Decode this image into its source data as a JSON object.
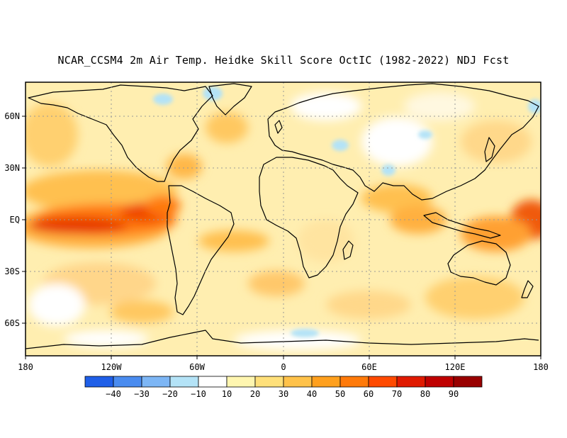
{
  "title": "NCAR_CCSM4 2m Air Temp. Heidke Skill Score OctIC (1982-2022) NDJ Fcst",
  "map": {
    "lat_labels": [
      "60N",
      "30N",
      "EQ",
      "30S",
      "60S"
    ],
    "lat_values": [
      60,
      30,
      0,
      -30,
      -60
    ],
    "lon_labels": [
      "180",
      "120W",
      "60W",
      "0",
      "60E",
      "120E",
      "180"
    ],
    "lon_values": [
      -180,
      -120,
      -60,
      0,
      60,
      120,
      180
    ],
    "lat_range": [
      -80,
      80
    ],
    "lon_range": [
      -180,
      180
    ],
    "grid": "dotted"
  },
  "colorbar": {
    "levels": [
      "-40",
      "-30",
      "-20",
      "-10",
      "10",
      "20",
      "30",
      "40",
      "50",
      "60",
      "70",
      "80",
      "90"
    ],
    "colors": [
      "#1f5fe8",
      "#4a8cf0",
      "#7db6f5",
      "#b4e3f7",
      "#ffffff",
      "#fff6b0",
      "#ffe07a",
      "#ffc24a",
      "#ffa01e",
      "#ff7a0a",
      "#ff4a00",
      "#e01a00",
      "#bf0000",
      "#990000"
    ]
  }
}
